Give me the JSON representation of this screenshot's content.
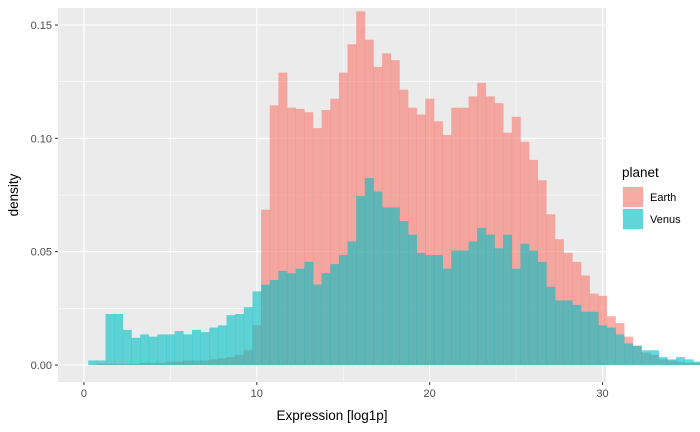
{
  "chart_data": {
    "type": "histogram",
    "xlabel": "Expression [log1p]",
    "ylabel": "density",
    "xlim": [
      -1.5,
      30.2
    ],
    "ylim": [
      -0.0075,
      0.1575
    ],
    "x_ticks": [
      0,
      10,
      20,
      30
    ],
    "x_tick_labels": [
      "0",
      "10",
      "20",
      "30"
    ],
    "y_ticks": [
      0.0,
      0.05,
      0.1,
      0.15
    ],
    "y_tick_labels": [
      "0.00",
      "0.05",
      "0.10",
      "0.15"
    ],
    "grid": true,
    "legend": {
      "title": "planet",
      "position": "right"
    },
    "bin_start": 0.25,
    "bin_width": 0.5,
    "series": [
      {
        "name": "Earth",
        "color": "#F8766D",
        "values": [
          0,
          0.0005,
          0.0005,
          0.0005,
          0.0005,
          0.0005,
          0.001,
          0.001,
          0.001,
          0.0015,
          0.0015,
          0.002,
          0.002,
          0.002,
          0.0025,
          0.003,
          0.0035,
          0.0045,
          0.0065,
          0.0175,
          0.0685,
          0.1145,
          0.129,
          0.1135,
          0.113,
          0.1115,
          0.1045,
          0.1125,
          0.1175,
          0.129,
          0.1415,
          0.156,
          0.1435,
          0.1315,
          0.1375,
          0.1345,
          0.1215,
          0.1135,
          0.1105,
          0.1175,
          0.1075,
          0.1015,
          0.1135,
          0.1135,
          0.1185,
          0.1245,
          0.1185,
          0.1155,
          0.1025,
          0.1095,
          0.0985,
          0.0905,
          0.0815,
          0.0665,
          0.0555,
          0.0495,
          0.0455,
          0.0395,
          0.0315,
          0.0305,
          0.0215,
          0.0185,
          0.0125,
          0.0085,
          0.0055,
          0.0045,
          0.0025,
          0.002,
          0.0015,
          0.001,
          0.001,
          0.0005,
          0.0005,
          0,
          0,
          0,
          0,
          0
        ]
      },
      {
        "name": "Venus",
        "color": "#00BFC4",
        "values": [
          0.002,
          0.002,
          0.0225,
          0.0225,
          0.0155,
          0.012,
          0.0135,
          0.0125,
          0.0135,
          0.0135,
          0.015,
          0.0135,
          0.0155,
          0.0145,
          0.0165,
          0.0175,
          0.022,
          0.0225,
          0.0255,
          0.0325,
          0.0355,
          0.0375,
          0.0415,
          0.0405,
          0.0425,
          0.0455,
          0.0355,
          0.0405,
          0.0445,
          0.0485,
          0.0545,
          0.0745,
          0.0825,
          0.0765,
          0.0695,
          0.0695,
          0.0635,
          0.0575,
          0.0495,
          0.0485,
          0.0485,
          0.0425,
          0.0505,
          0.0505,
          0.0545,
          0.0605,
          0.0575,
          0.0515,
          0.0575,
          0.0425,
          0.0535,
          0.0505,
          0.0455,
          0.0345,
          0.0285,
          0.0285,
          0.0265,
          0.0235,
          0.0235,
          0.0175,
          0.0165,
          0.0135,
          0.0095,
          0.0085,
          0.0065,
          0.0065,
          0.0035,
          0.0025,
          0.0035,
          0.0025,
          0.0015,
          0.0015,
          0.001,
          0.001,
          0.0005,
          0,
          0,
          0
        ]
      }
    ]
  }
}
